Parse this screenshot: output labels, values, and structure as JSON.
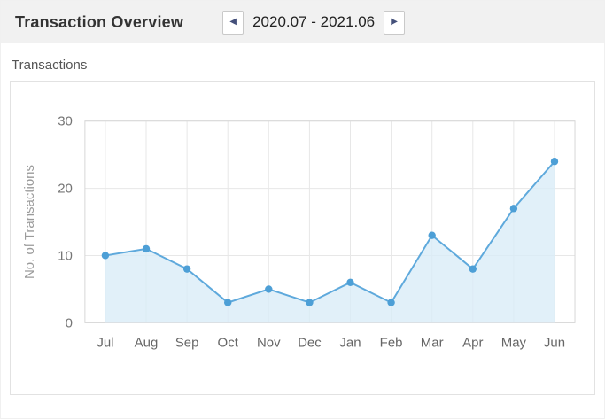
{
  "header": {
    "title": "Transaction Overview",
    "date_range": "2020.07 - 2021.06",
    "prev_icon_glyph": "◀",
    "next_icon_glyph": "▶"
  },
  "section": {
    "label": "Transactions"
  },
  "chart_data": {
    "type": "area",
    "title": "Transactions",
    "categories": [
      "Jul",
      "Aug",
      "Sep",
      "Oct",
      "Nov",
      "Dec",
      "Jan",
      "Feb",
      "Mar",
      "Apr",
      "May",
      "Jun"
    ],
    "values": [
      10,
      11,
      8,
      3,
      5,
      3,
      6,
      3,
      13,
      8,
      17,
      24
    ],
    "xlabel": "",
    "ylabel": "No. of Transactions",
    "ylim": [
      0,
      30
    ],
    "yticks": [
      0,
      10,
      20,
      30
    ],
    "grid": "on",
    "legend": "none",
    "line_color": "#5ea9dc",
    "point_color": "#4d9fd6",
    "area_color": "#d9ecf8",
    "grid_color": "#e7e7e7",
    "plot_border_color": "#d6d6d6",
    "tick_label_color": "#757575",
    "axis_title_color": "#9b9b9b"
  }
}
